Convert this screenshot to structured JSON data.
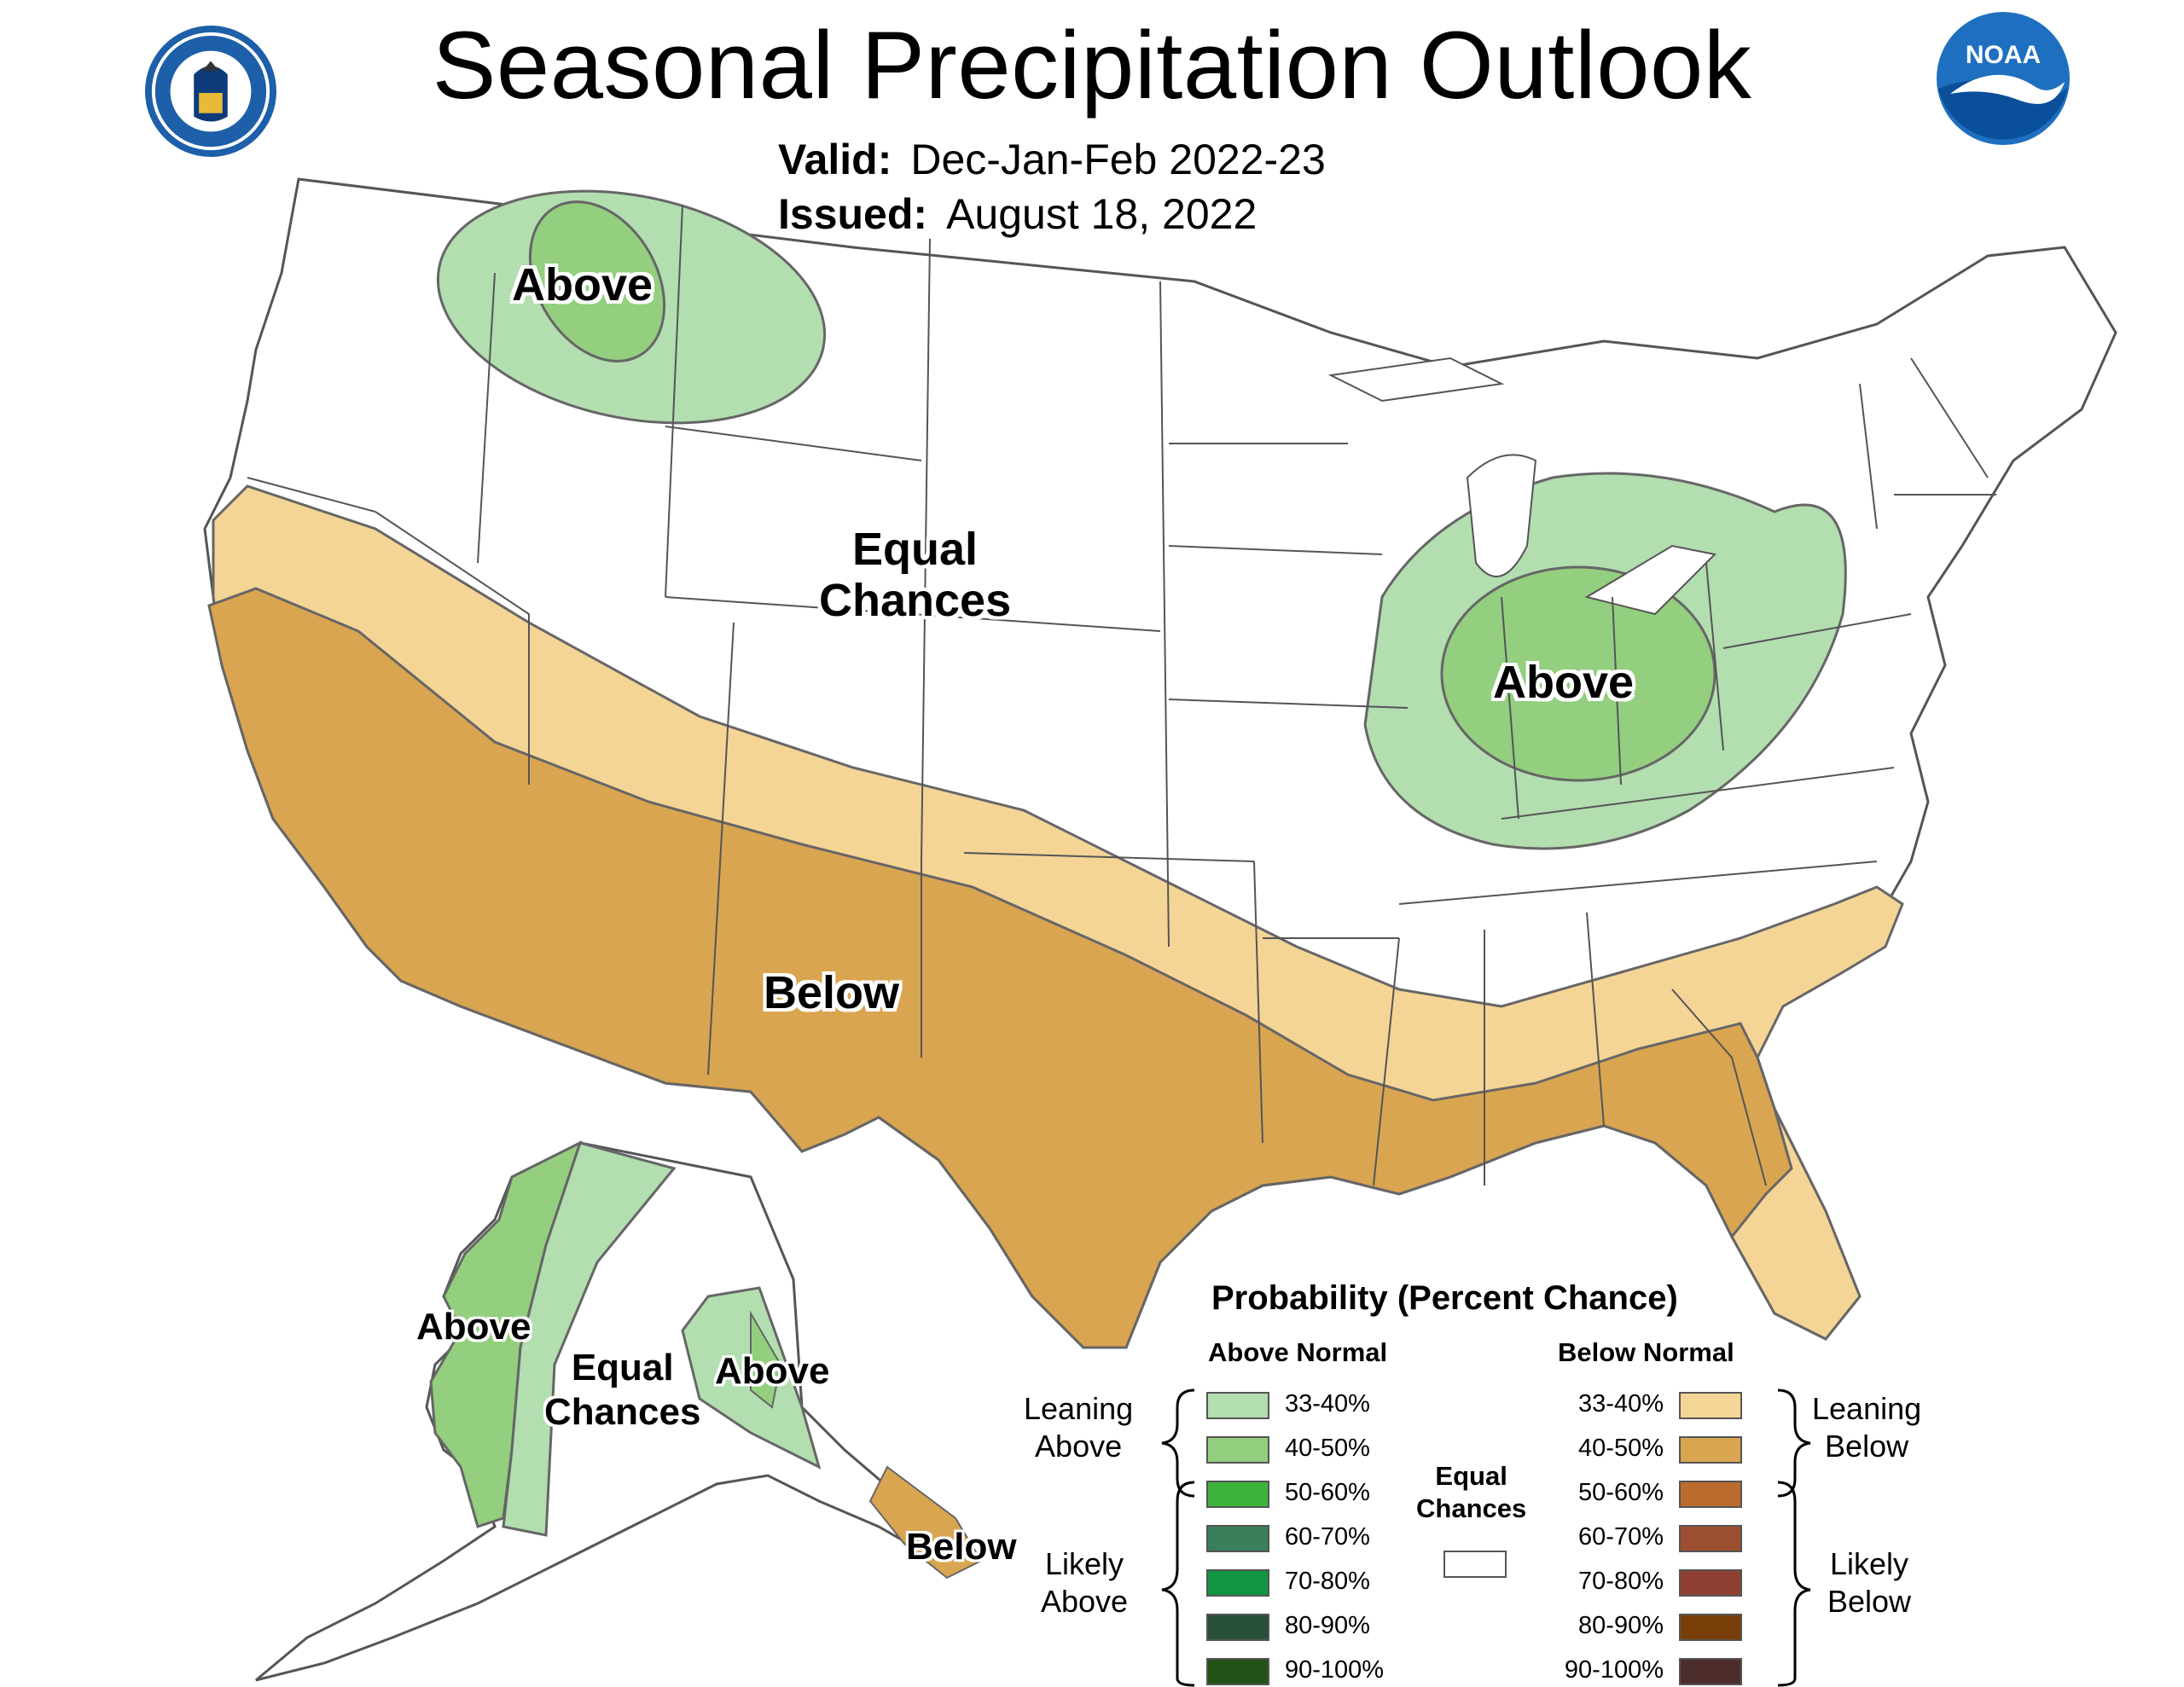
{
  "header": {
    "title": "Seasonal Precipitation Outlook",
    "valid_label": "Valid:",
    "valid_value": "Dec-Jan-Feb 2022-23",
    "issued_label": "Issued:",
    "issued_value": "August 18, 2022",
    "noaa_logo_text": "NOAA",
    "seal_icon": "department-of-commerce-seal-icon",
    "noaa_icon": "noaa-logo-icon"
  },
  "map_labels": {
    "nw_above": "Above",
    "central_ec_line1": "Equal",
    "central_ec_line2": "Chances",
    "ohio_above": "Above",
    "south_below": "Below",
    "ak_west_above": "Above",
    "ak_ec_line1": "Equal",
    "ak_ec_line2": "Chances",
    "ak_east_above": "Above",
    "ak_se_below": "Below"
  },
  "colors": {
    "above_33_40": "#b3deb0",
    "above_40_50": "#93cf7e",
    "below_33_40": "#f4d596",
    "below_40_50": "#d9a550",
    "equal_chances": "#ffffff"
  },
  "legend": {
    "title": "Probability (Percent Chance)",
    "above_header": "Above Normal",
    "below_header": "Below Normal",
    "leaning_above_1": "Leaning",
    "leaning_above_2": "Above",
    "likely_above_1": "Likely",
    "likely_above_2": "Above",
    "leaning_below_1": "Leaning",
    "leaning_below_2": "Below",
    "likely_below_1": "Likely",
    "likely_below_2": "Below",
    "equal_chances_1": "Equal",
    "equal_chances_2": "Chances",
    "above_items": [
      {
        "label": "33-40%",
        "color": "#b3deb0"
      },
      {
        "label": "40-50%",
        "color": "#93cf7e"
      },
      {
        "label": "50-60%",
        "color": "#3db33b"
      },
      {
        "label": "60-70%",
        "color": "#3a7f59"
      },
      {
        "label": "70-80%",
        "color": "#119540"
      },
      {
        "label": "80-90%",
        "color": "#274f39"
      },
      {
        "label": "90-100%",
        "color": "#215216"
      }
    ],
    "below_items": [
      {
        "label": "33-40%",
        "color": "#f4d596"
      },
      {
        "label": "40-50%",
        "color": "#d9a550"
      },
      {
        "label": "50-60%",
        "color": "#bb6b2e"
      },
      {
        "label": "60-70%",
        "color": "#9c4f30"
      },
      {
        "label": "70-80%",
        "color": "#8f4032"
      },
      {
        "label": "80-90%",
        "color": "#7a3f08"
      },
      {
        "label": "90-100%",
        "color": "#4d2c2c"
      }
    ]
  }
}
